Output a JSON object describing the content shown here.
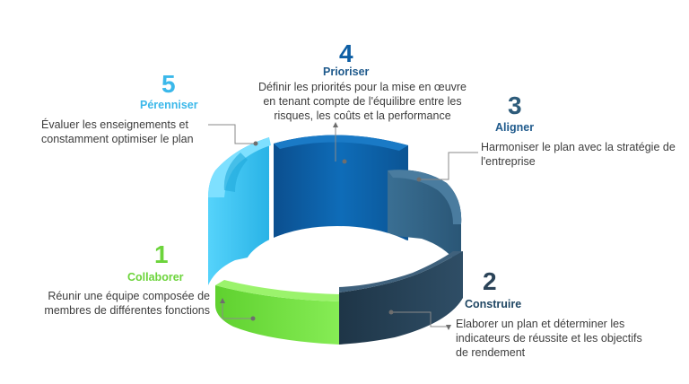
{
  "steps": [
    {
      "number": "1",
      "title": "Collaborer",
      "lines": [
        "Réunir une équipe composée de",
        "membres de différentes fonctions"
      ],
      "color": "#6cd43b"
    },
    {
      "number": "2",
      "title": "Construire",
      "lines": [
        "Elaborer un plan et déterminer les",
        "indicateurs de réussite et les objectifs",
        "de rendement"
      ],
      "color": "#2a4358"
    },
    {
      "number": "3",
      "title": "Aligner",
      "lines": [
        "Harmoniser le plan avec la stratégie de",
        "l'entreprise"
      ],
      "color": "#2d5b7a"
    },
    {
      "number": "4",
      "title": "Prioriser",
      "lines": [
        "Définir les priorités pour la mise en œuvre",
        "en tenant compte de l'équilibre entre les",
        "risques, les coûts et la performance"
      ],
      "color": "#0d5ea4"
    },
    {
      "number": "5",
      "title": "Pérenniser",
      "lines": [
        "Évaluer les enseignements et",
        "constamment optimiser le plan"
      ],
      "color": "#3bb8ea"
    }
  ]
}
